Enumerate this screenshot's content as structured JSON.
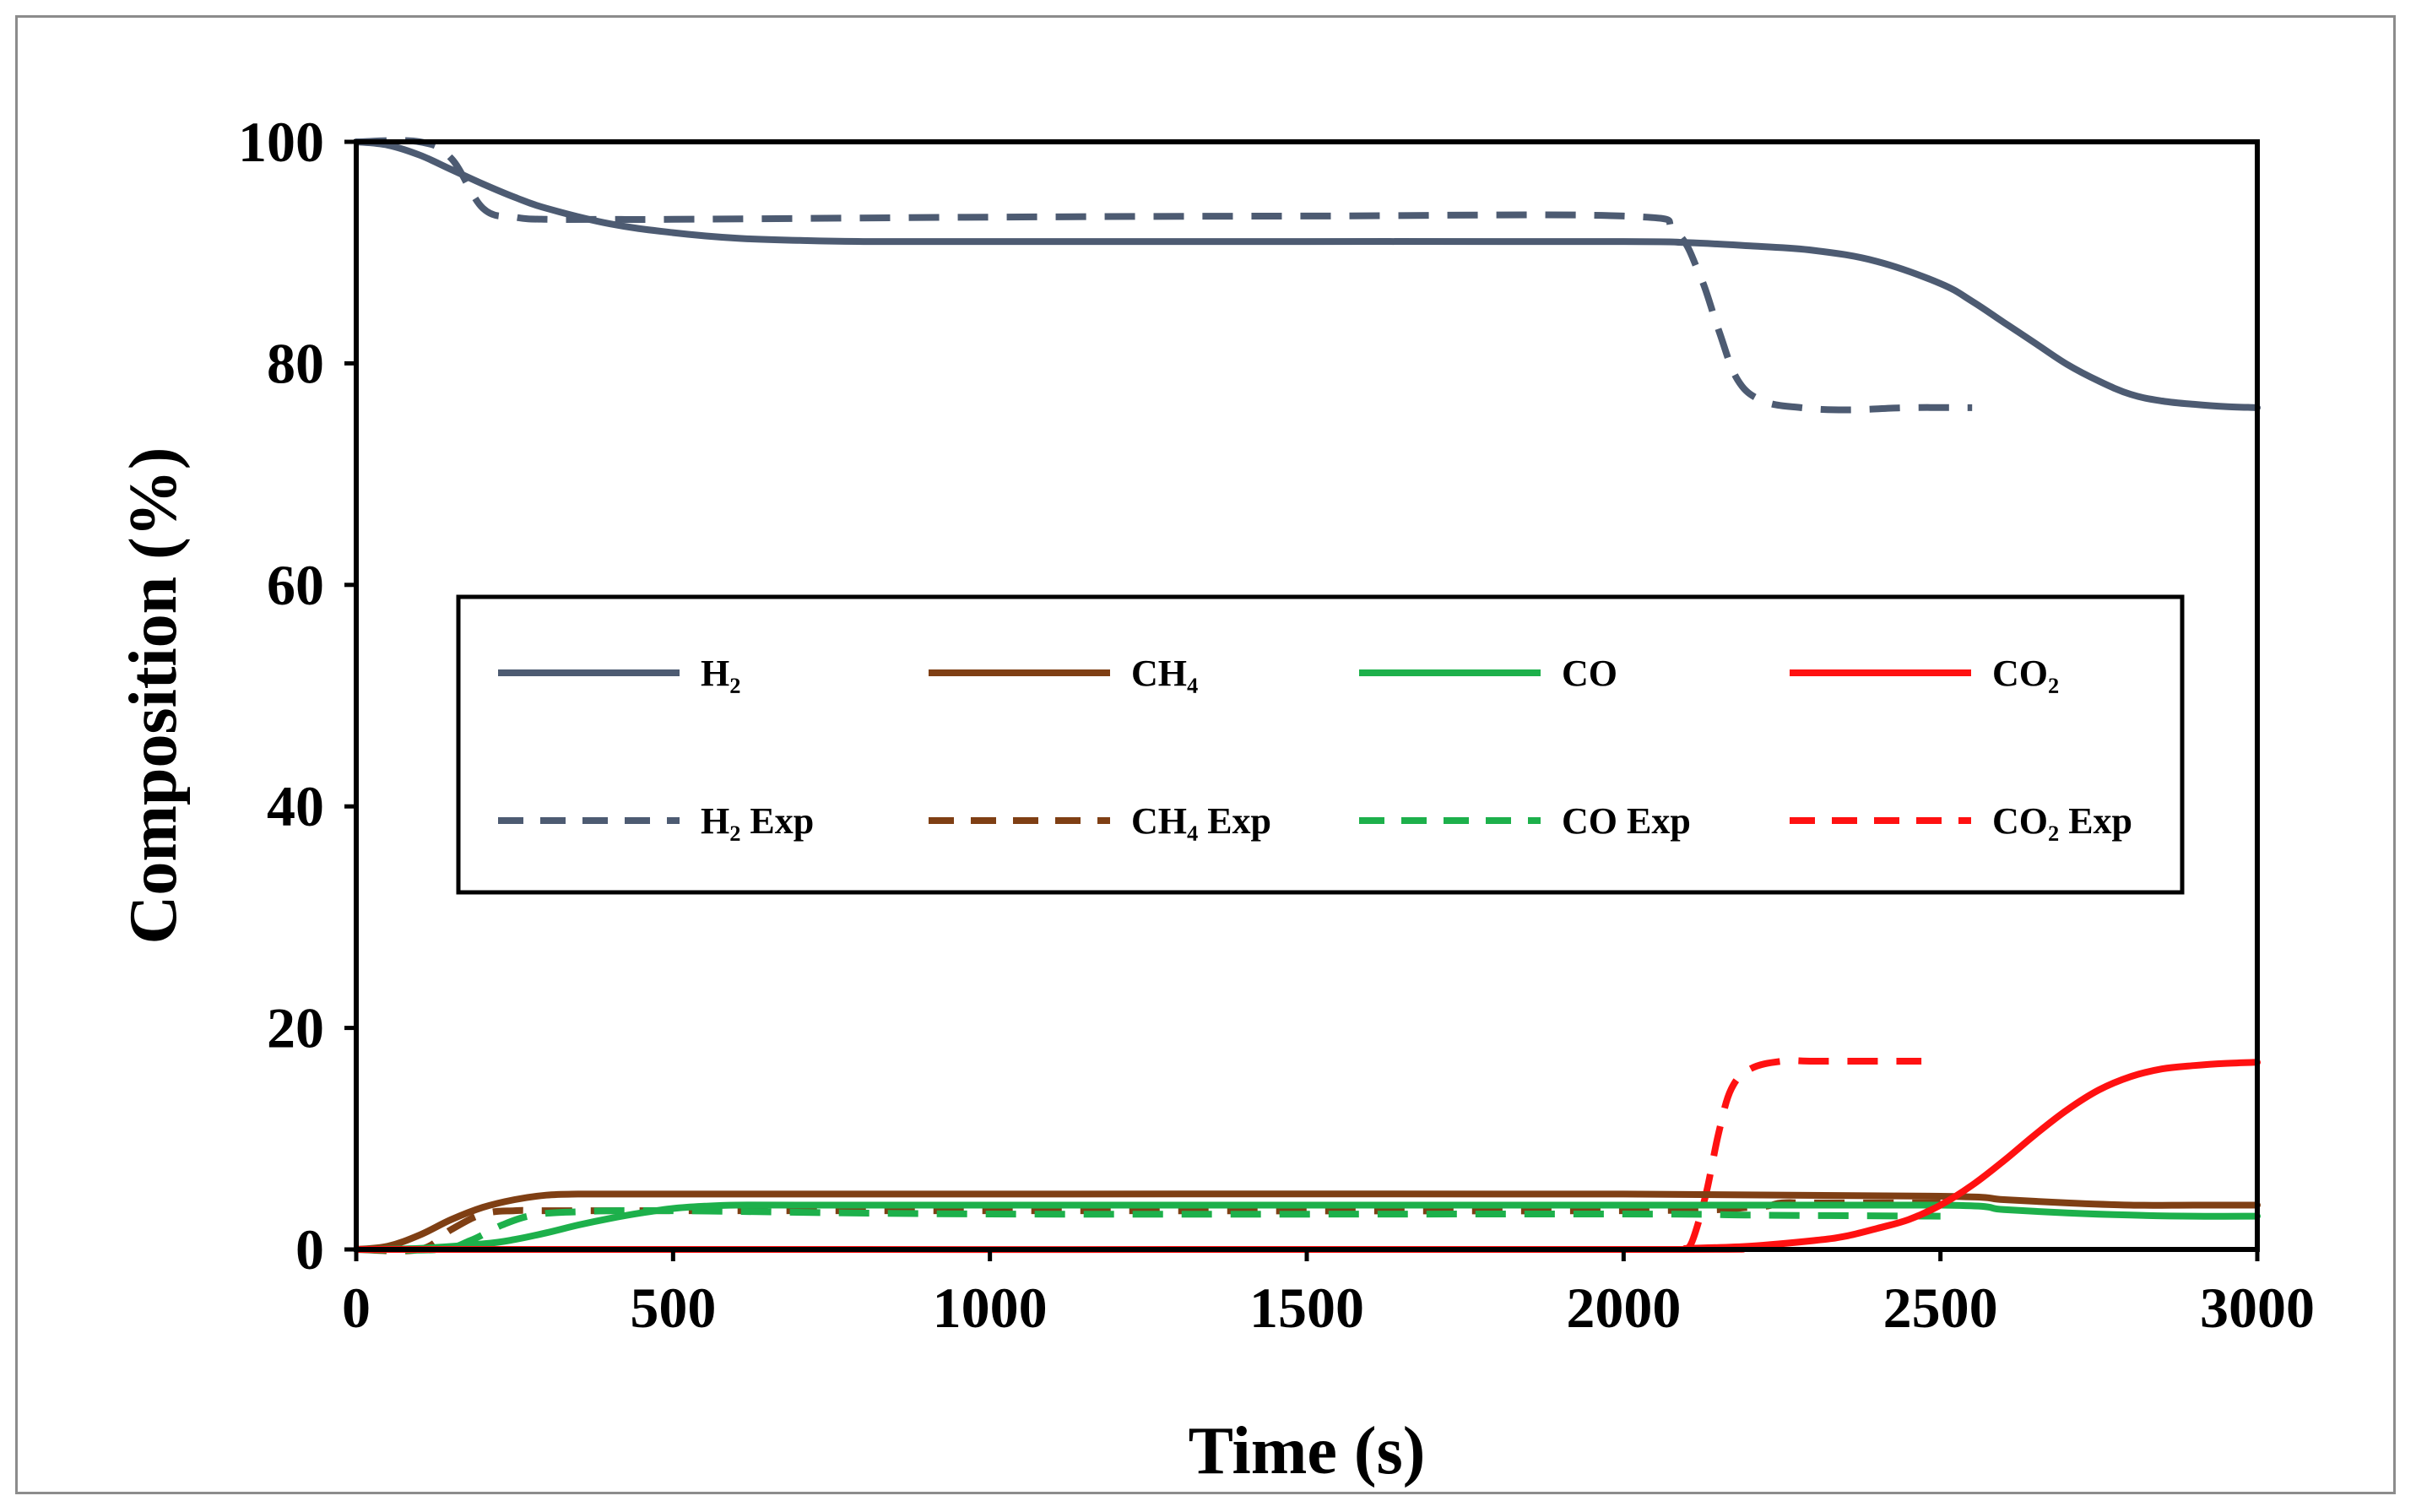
{
  "chart_data": {
    "type": "line",
    "title": "",
    "xlabel": "Time (s)",
    "ylabel": "Composition (%)",
    "xlim": [
      0,
      3000
    ],
    "ylim": [
      0,
      100
    ],
    "x_ticks": [
      0,
      500,
      1000,
      1500,
      2000,
      2500,
      3000
    ],
    "y_ticks": [
      0,
      20,
      40,
      60,
      80,
      100
    ],
    "x_tick_labels": [
      "0",
      "500",
      "1000",
      "1500",
      "2000",
      "2500",
      "3000"
    ],
    "y_tick_labels": [
      "0",
      "20",
      "40",
      "60",
      "80",
      "100"
    ],
    "grid": false,
    "legend_position": "center",
    "series": [
      {
        "name": "H₂",
        "color": "#4d5b72",
        "style": "solid",
        "x": [
          0,
          50,
          100,
          150,
          200,
          250,
          300,
          400,
          500,
          600,
          700,
          800,
          1000,
          1500,
          2000,
          2100,
          2200,
          2300,
          2400,
          2500,
          2550,
          2600,
          2650,
          2700,
          2750,
          2800,
          2850,
          2900,
          2950,
          3000
        ],
        "y": [
          100,
          99.7,
          98.8,
          97.5,
          96.2,
          95,
          94,
          92.6,
          91.8,
          91.3,
          91.1,
          91,
          91,
          91,
          91,
          90.9,
          90.6,
          90.2,
          89.2,
          87.2,
          85.6,
          83.7,
          81.8,
          79.9,
          78.4,
          77.2,
          76.6,
          76.3,
          76.1,
          76
        ]
      },
      {
        "name": "CH₄",
        "color": "#7f3f14",
        "style": "solid",
        "x": [
          0,
          50,
          100,
          150,
          200,
          250,
          300,
          350,
          400,
          500,
          1000,
          2000,
          2500,
          2600,
          2700,
          2800,
          2900,
          3000
        ],
        "y": [
          0,
          0.3,
          1.3,
          2.7,
          3.8,
          4.5,
          4.9,
          5,
          5,
          5,
          5,
          5,
          4.8,
          4.5,
          4.2,
          4,
          4,
          4
        ]
      },
      {
        "name": "CO",
        "color": "#1db04b",
        "style": "solid",
        "x": [
          0,
          100,
          200,
          250,
          300,
          350,
          400,
          450,
          500,
          550,
          600,
          700,
          1000,
          2000,
          2500,
          2600,
          2700,
          2800,
          2900,
          3000
        ],
        "y": [
          0,
          0.1,
          0.5,
          0.9,
          1.5,
          2.2,
          2.8,
          3.3,
          3.7,
          3.9,
          4,
          4,
          4,
          4,
          4,
          3.6,
          3.3,
          3.1,
          3,
          3
        ]
      },
      {
        "name": "CO₂",
        "color": "#ff1111",
        "style": "solid",
        "x": [
          0,
          2000,
          2100,
          2200,
          2300,
          2350,
          2400,
          2450,
          2500,
          2550,
          2600,
          2650,
          2700,
          2750,
          2800,
          2850,
          2900,
          2950,
          3000
        ],
        "y": [
          0,
          0,
          0.1,
          0.3,
          0.8,
          1.2,
          1.9,
          2.7,
          4,
          5.8,
          8,
          10.4,
          12.6,
          14.4,
          15.6,
          16.3,
          16.6,
          16.8,
          16.9
        ]
      },
      {
        "name": "H₂ Exp",
        "color": "#4d5b72",
        "style": "dashed",
        "x": [
          0,
          100,
          150,
          200,
          250,
          300,
          400,
          500,
          1000,
          1500,
          2000,
          2080,
          2120,
          2150,
          2180,
          2220,
          2280,
          2350,
          2450,
          2550
        ],
        "y": [
          100,
          100,
          98.5,
          94,
          93.2,
          93,
          93,
          93,
          93.2,
          93.3,
          93.3,
          92,
          88,
          83,
          78.5,
          76.6,
          76,
          75.8,
          76,
          76
        ]
      },
      {
        "name": "CH₄ Exp",
        "color": "#7f3f14",
        "style": "dashed",
        "x": [
          0,
          100,
          150,
          200,
          250,
          300,
          500,
          1000,
          2000,
          2200,
          2250,
          2300,
          2500
        ],
        "y": [
          0,
          0,
          1.8,
          3.2,
          3.5,
          3.5,
          3.5,
          3.5,
          3.5,
          3.8,
          4.2,
          4.2,
          4.2
        ]
      },
      {
        "name": "CO Exp",
        "color": "#1db04b",
        "style": "dashed",
        "x": [
          0,
          130,
          180,
          230,
          280,
          350,
          500,
          1000,
          2000,
          2200,
          2500
        ],
        "y": [
          0,
          0,
          0.8,
          2.2,
          3.1,
          3.4,
          3.5,
          3.2,
          3.2,
          3.1,
          3
        ]
      },
      {
        "name": "CO₂ Exp",
        "color": "#ff1111",
        "style": "dashed",
        "x": [
          2100,
          2110,
          2130,
          2150,
          2170,
          2200,
          2250,
          2300,
          2400,
          2470
        ],
        "y": [
          0,
          1,
          5,
          10.5,
          14.5,
          16.3,
          17,
          17,
          17,
          17
        ]
      }
    ]
  }
}
